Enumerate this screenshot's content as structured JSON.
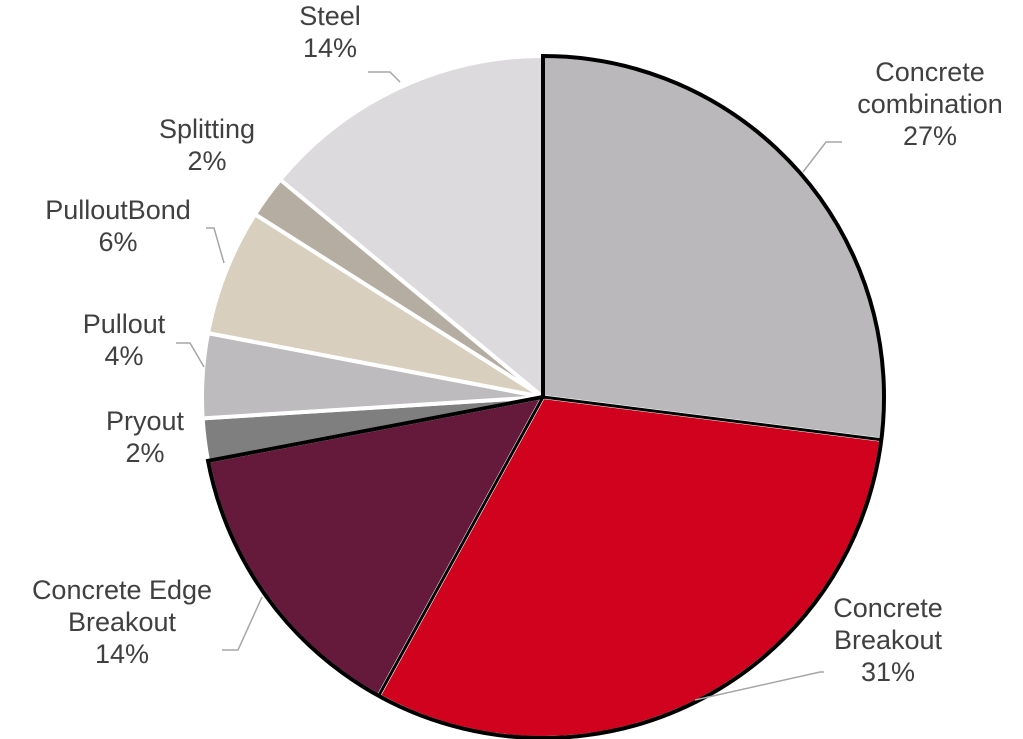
{
  "chart_data": {
    "type": "pie",
    "title": "",
    "slices": [
      {
        "name": "Concrete combination",
        "label_lines": [
          "Concrete",
          "combination"
        ],
        "value": 27,
        "value_label": "27%",
        "color": "#bab8ba"
      },
      {
        "name": "Concrete Breakout",
        "label_lines": [
          "Concrete",
          "Breakout"
        ],
        "value": 31,
        "value_label": "31%",
        "color": "#d0021e"
      },
      {
        "name": "Concrete Edge Breakout",
        "label_lines": [
          "Concrete Edge",
          "Breakout"
        ],
        "value": 14,
        "value_label": "14%",
        "color": "#651a3c"
      },
      {
        "name": "Pryout",
        "label_lines": [
          "Pryout"
        ],
        "value": 2,
        "value_label": "2%",
        "color": "#7f7f7f"
      },
      {
        "name": "Pullout",
        "label_lines": [
          "Pullout"
        ],
        "value": 4,
        "value_label": "4%",
        "color": "#bdbbbd"
      },
      {
        "name": "PulloutBond",
        "label_lines": [
          "PulloutBond"
        ],
        "value": 6,
        "value_label": "6%",
        "color": "#d8cfbf"
      },
      {
        "name": "Splitting",
        "label_lines": [
          "Splitting"
        ],
        "value": 2,
        "value_label": "2%",
        "color": "#b5ada1"
      },
      {
        "name": "Steel",
        "label_lines": [
          "Steel"
        ],
        "value": 14,
        "value_label": "14%",
        "color": "#dcdadd"
      }
    ],
    "start_angle_deg": 0,
    "direction": "clockwise",
    "highlighted_slices": [
      "Concrete combination",
      "Concrete Breakout",
      "Concrete Edge Breakout"
    ],
    "legend": "none",
    "label_color": "#404040",
    "leader_line_color": "#a6a6a6"
  }
}
